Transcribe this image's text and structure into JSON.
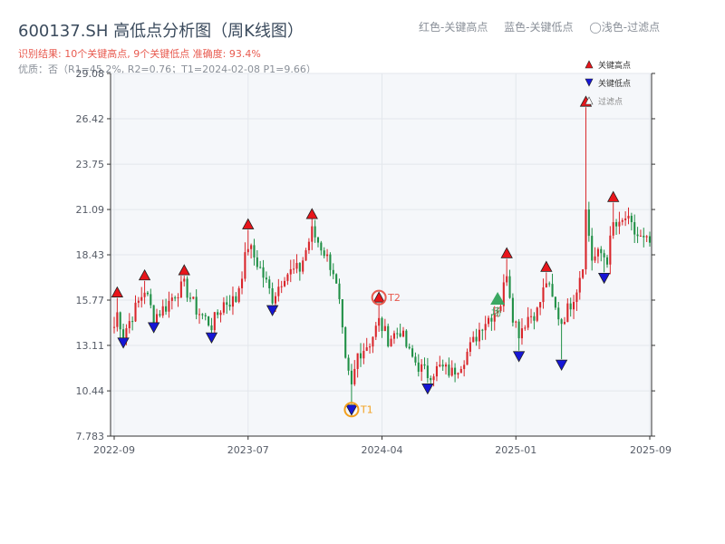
{
  "header": {
    "title": "600137.SH 高低点分析图（周K线图）",
    "result": "识别结果: 10个关键高点, 9个关键低点   准确度: 93.4%",
    "quality": "优质：否（R1=45.2%, R2=0.76；T1=2024-02-08 P1=9.66）",
    "legend_red": "红色-关键高点",
    "legend_blue": "蓝色-关键低点",
    "legend_light": "◯浅色-过滤点"
  },
  "colors": {
    "up": "#d9262b",
    "down": "#1f8f45",
    "high_marker": "#e8151b",
    "low_marker": "#1616d6",
    "t1": "#f2a01e",
    "t2": "#e85a4f",
    "start": "#3aa862",
    "plot_bg": "#f5f7fa"
  },
  "chart_data": {
    "type": "candlestick",
    "title": "600137.SH 高低点分析图（周K线图）",
    "ylim": [
      7.783,
      29.08
    ],
    "yticks": [
      "7.783",
      "10.44",
      "13.11",
      "15.77",
      "18.43",
      "21.09",
      "23.75",
      "26.42",
      "29.08"
    ],
    "xticks": [
      {
        "label": "2022-09",
        "week": 0
      },
      {
        "label": "2023-07",
        "week": 44
      },
      {
        "label": "2024-04",
        "week": 88
      },
      {
        "label": "2025-01",
        "week": 132
      },
      {
        "label": "2025-09",
        "week": 176
      }
    ],
    "grid": true,
    "legend": {
      "placement": "top-right",
      "entries": [
        "关键高点",
        "关键低点",
        "过滤点"
      ]
    },
    "key_points": [
      {
        "type": "high",
        "week": 1,
        "price": 15.9
      },
      {
        "type": "low",
        "week": 3,
        "price": 13.6
      },
      {
        "type": "high",
        "week": 10,
        "price": 16.9
      },
      {
        "type": "low",
        "week": 13,
        "price": 14.5
      },
      {
        "type": "high",
        "week": 23,
        "price": 17.2
      },
      {
        "type": "low",
        "week": 32,
        "price": 13.9
      },
      {
        "type": "high",
        "week": 44,
        "price": 19.9
      },
      {
        "type": "low",
        "week": 52,
        "price": 15.5
      },
      {
        "type": "high",
        "week": 65,
        "price": 20.5
      },
      {
        "type": "low",
        "week": 78,
        "price": 9.66,
        "label": "T1"
      },
      {
        "type": "high",
        "week": 87,
        "price": 15.6,
        "label": "T2"
      },
      {
        "type": "low",
        "week": 103,
        "price": 10.9
      },
      {
        "type": "high",
        "week": 129,
        "price": 18.2
      },
      {
        "type": "low",
        "week": 133,
        "price": 12.8
      },
      {
        "type": "high",
        "week": 142,
        "price": 17.4
      },
      {
        "type": "low",
        "week": 147,
        "price": 12.3
      },
      {
        "type": "high",
        "week": 155,
        "price": 27.1
      },
      {
        "type": "low",
        "week": 161,
        "price": 17.4
      },
      {
        "type": "high",
        "week": 164,
        "price": 21.5
      }
    ],
    "start_marker": {
      "week": 126,
      "price": 15.5,
      "label": "场"
    },
    "anchors": [
      [
        0,
        14.2
      ],
      [
        1,
        15.0
      ],
      [
        3,
        13.8
      ],
      [
        6,
        14.9
      ],
      [
        10,
        16.4
      ],
      [
        13,
        14.8
      ],
      [
        17,
        15.4
      ],
      [
        20,
        16.2
      ],
      [
        23,
        16.6
      ],
      [
        27,
        15.2
      ],
      [
        32,
        14.3
      ],
      [
        36,
        15.6
      ],
      [
        40,
        15.8
      ],
      [
        44,
        19.0
      ],
      [
        48,
        17.6
      ],
      [
        52,
        15.9
      ],
      [
        56,
        17.3
      ],
      [
        61,
        17.6
      ],
      [
        65,
        19.8
      ],
      [
        69,
        18.6
      ],
      [
        72,
        17.5
      ],
      [
        74,
        15.5
      ],
      [
        76,
        12.0
      ],
      [
        78,
        10.6
      ],
      [
        80,
        12.6
      ],
      [
        84,
        13.3
      ],
      [
        87,
        14.5
      ],
      [
        90,
        13.5
      ],
      [
        94,
        14.0
      ],
      [
        97,
        12.6
      ],
      [
        100,
        11.9
      ],
      [
        103,
        11.4
      ],
      [
        107,
        11.8
      ],
      [
        111,
        11.5
      ],
      [
        114,
        12.1
      ],
      [
        118,
        13.3
      ],
      [
        121,
        14.4
      ],
      [
        124,
        14.9
      ],
      [
        127,
        15.6
      ],
      [
        129,
        17.5
      ],
      [
        131,
        14.9
      ],
      [
        133,
        13.9
      ],
      [
        136,
        14.8
      ],
      [
        139,
        15.1
      ],
      [
        142,
        16.9
      ],
      [
        145,
        15.2
      ],
      [
        147,
        14.5
      ],
      [
        150,
        15.6
      ],
      [
        152,
        16.5
      ],
      [
        154,
        18.0
      ],
      [
        155,
        21.0
      ],
      [
        157,
        18.2
      ],
      [
        160,
        18.5
      ],
      [
        162,
        18.2
      ],
      [
        164,
        20.2
      ],
      [
        166,
        20.0
      ],
      [
        168,
        20.6
      ],
      [
        171,
        19.7
      ],
      [
        174,
        19.2
      ],
      [
        176,
        19.1
      ]
    ]
  }
}
